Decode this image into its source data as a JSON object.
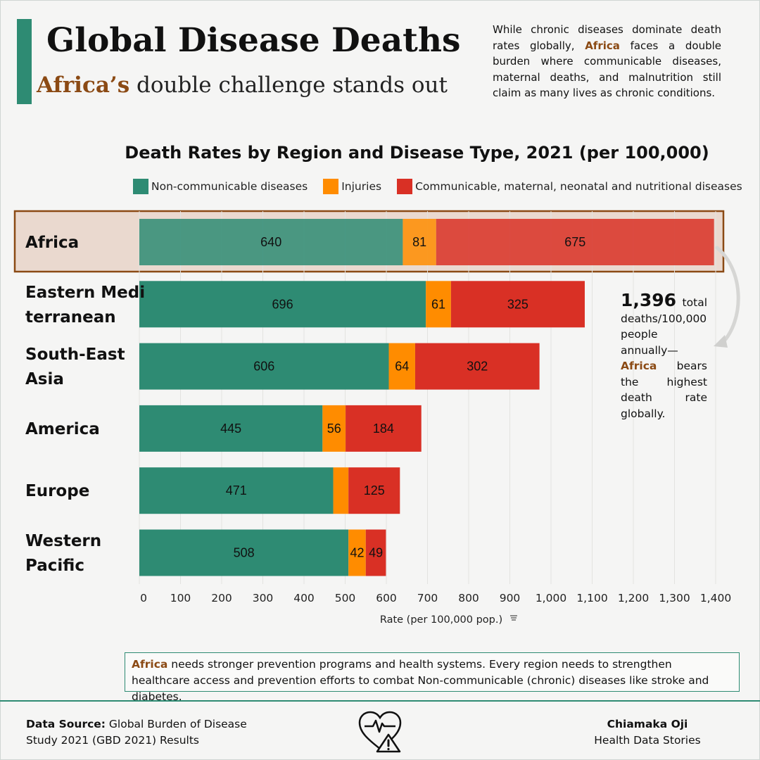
{
  "header": {
    "title": "Global Disease Deaths",
    "subtitle_highlight": "Africa’s",
    "subtitle_rest": " double challenge stands out",
    "intro_1": "While chronic diseases dominate death rates globally, ",
    "intro_highlight": "Africa",
    "intro_2": " faces a double burden where communicable diseases, maternal deaths, and malnutrition still claim as many lives as chronic conditions."
  },
  "colors": {
    "ncd": "#2e8b73",
    "injuries": "#ff8c00",
    "communicable": "#d93025",
    "accent": "#2e8b73",
    "highlight_text": "#8b4a14",
    "highlight_box": "#ead9cf",
    "highlight_border": "#8b4a14"
  },
  "chart_data": {
    "type": "bar",
    "orientation": "horizontal",
    "stacked": true,
    "title": "Death Rates by Region and Disease Type, 2021 (per 100,000)",
    "xlabel": "Rate (per 100,000 pop.)",
    "ylabel": "",
    "xlim": [
      0,
      1400
    ],
    "xticks": [
      0,
      100,
      200,
      300,
      400,
      500,
      600,
      700,
      800,
      900,
      1000,
      1100,
      1200,
      1300,
      1400
    ],
    "xtick_labels": [
      "0",
      "100",
      "200",
      "300",
      "400",
      "500",
      "600",
      "700",
      "800",
      "900",
      "1,000",
      "1,100",
      "1,200",
      "1,300",
      "1,400"
    ],
    "grid": true,
    "categories": [
      [
        "Africa"
      ],
      [
        "Eastern Medi",
        "terranean"
      ],
      [
        "South-East",
        "Asia"
      ],
      [
        "America"
      ],
      [
        "Europe"
      ],
      [
        "Western",
        "Pacific"
      ]
    ],
    "highlight_category": 0,
    "series": [
      {
        "name": "Non-communicable diseases",
        "values": [
          640,
          696,
          606,
          445,
          471,
          508
        ],
        "labels": [
          "640",
          "696",
          "606",
          "445",
          "471",
          "508"
        ]
      },
      {
        "name": "Injuries",
        "values": [
          81,
          61,
          64,
          56,
          37,
          42
        ],
        "labels": [
          "81",
          "61",
          "64",
          "56",
          "",
          "42"
        ]
      },
      {
        "name": "Communicable, maternal, neonatal and nutritional diseases",
        "values": [
          675,
          325,
          302,
          184,
          125,
          49
        ],
        "labels": [
          "675",
          "325",
          "302",
          "184",
          "125",
          "49"
        ]
      }
    ]
  },
  "callout": {
    "number": "1,396",
    "text_1": " total deaths/100,000 people annually—",
    "highlight": "Africa",
    "text_2": " bears the highest death rate globally."
  },
  "note": {
    "highlight": "Africa",
    "text": " needs stronger prevention programs and health systems. Every region needs to strengthen healthcare access and prevention efforts to combat Non-communicable (chronic) diseases like stroke and diabetes."
  },
  "footer": {
    "source_label": "Data Source:",
    "source_text_1": " Global Burden of Disease",
    "source_text_2": "Study 2021 (GBD 2021) Results",
    "author_name": "Chiamaka Oji",
    "author_brand": "Health Data Stories"
  }
}
